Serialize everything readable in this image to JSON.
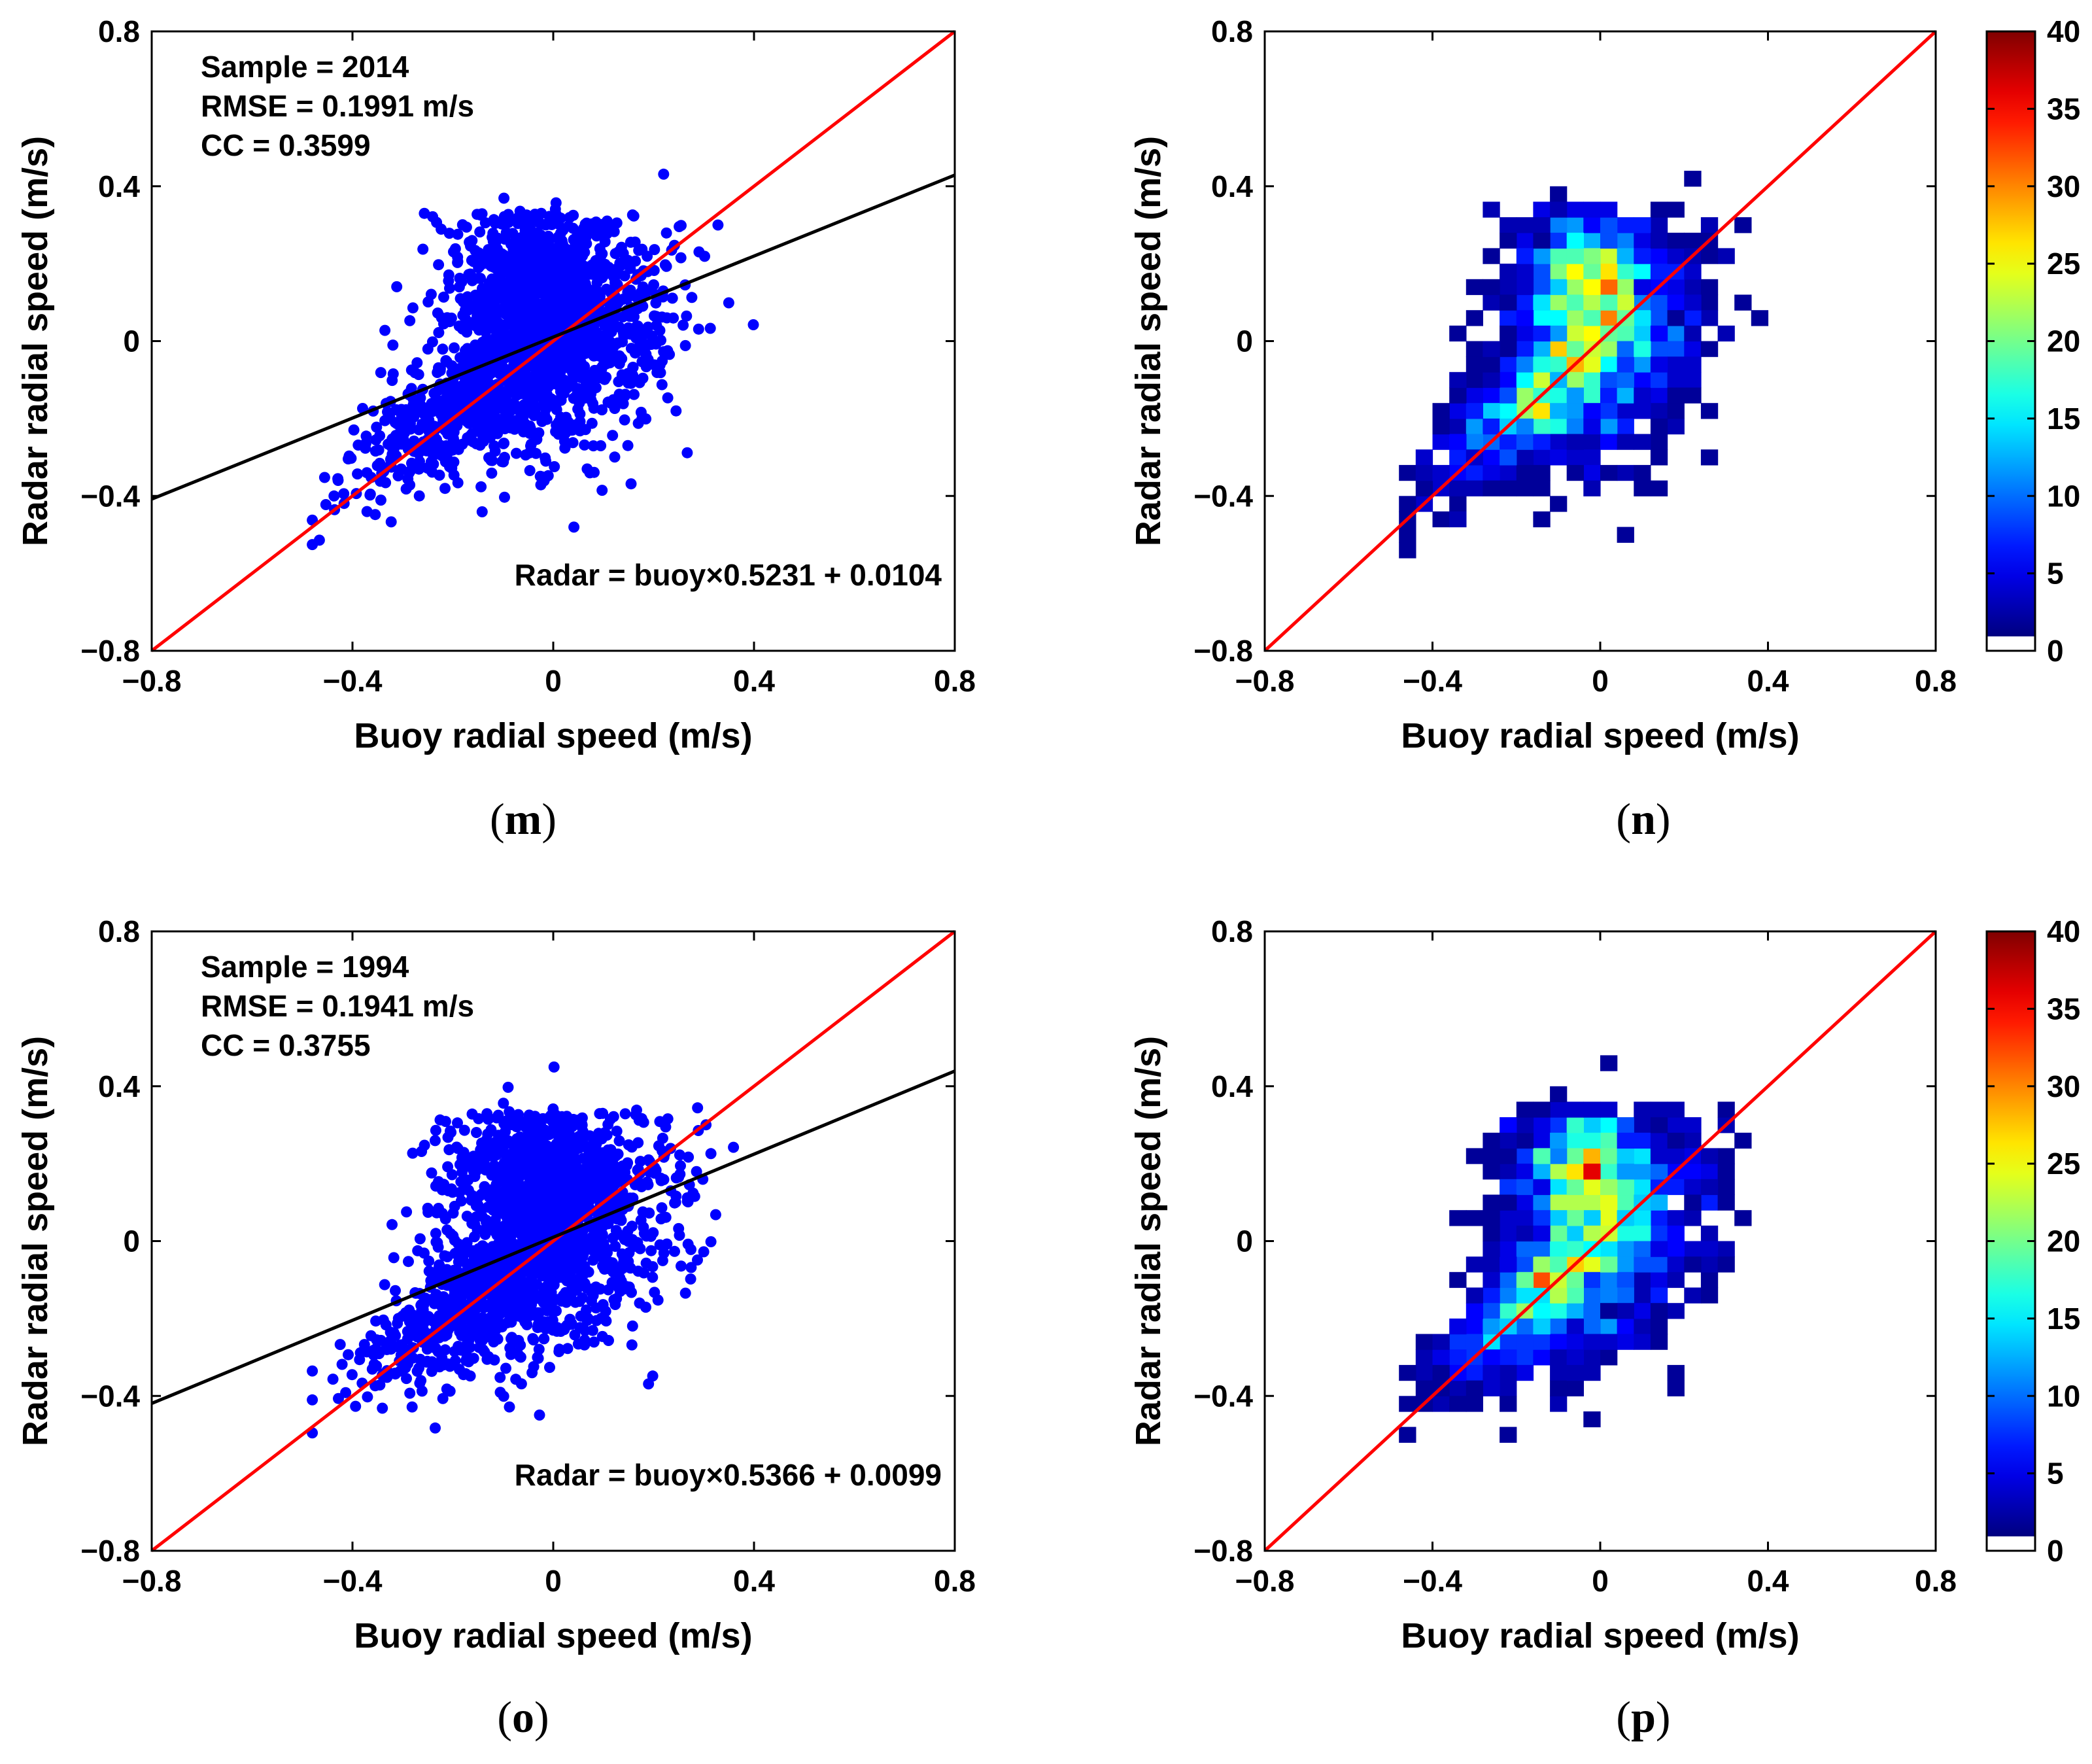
{
  "colors": {
    "scatter_point": "#0000ff",
    "identity_line": "#ff0000",
    "fit_line": "#000000",
    "axis": "#000000",
    "colormap": "jet"
  },
  "chart_data": [
    {
      "id": "m",
      "type": "scatter",
      "caption_open": "(",
      "caption_letter": "m",
      "caption_close": ")",
      "xlabel": "Buoy radial speed (m/s)",
      "ylabel": "Radar radial speed (m/s)",
      "xlim": [
        -0.8,
        0.8
      ],
      "ylim": [
        -0.8,
        0.8
      ],
      "x_ticks": [
        -0.8,
        -0.4,
        0,
        0.4,
        0.8
      ],
      "y_ticks": [
        -0.8,
        -0.4,
        0,
        0.4,
        0.8
      ],
      "x_tick_labels": [
        "−0.8",
        "−0.4",
        "0",
        "0.4",
        "0.8"
      ],
      "y_tick_labels": [
        "−0.8",
        "−0.4",
        "0",
        "0.4",
        "0.8"
      ],
      "stats": [
        "Sample = 2014",
        "RMSE = 0.1991 m/s",
        "CC = 0.3599"
      ],
      "sample": 2014,
      "rmse": 0.1991,
      "cc": 0.3599,
      "fit_equation": "Radar = buoy×0.5231 + 0.0104",
      "fit": {
        "slope": 0.5231,
        "intercept": 0.0104
      },
      "identity_line": true,
      "point_count": 2014,
      "seed": 101,
      "grid": false
    },
    {
      "id": "n",
      "type": "heatmap",
      "caption_open": "(",
      "caption_letter": "n",
      "caption_close": ")",
      "xlabel": "Buoy radial speed (m/s)",
      "ylabel": "Radar radial speed (m/s)",
      "xlim": [
        -0.8,
        0.8
      ],
      "ylim": [
        -0.8,
        0.8
      ],
      "x_ticks": [
        -0.8,
        -0.4,
        0,
        0.4,
        0.8
      ],
      "y_ticks": [
        -0.8,
        -0.4,
        0,
        0.4,
        0.8
      ],
      "x_tick_labels": [
        "−0.8",
        "−0.4",
        "0",
        "0.4",
        "0.8"
      ],
      "y_tick_labels": [
        "−0.8",
        "−0.4",
        "0",
        "0.4",
        "0.8"
      ],
      "bin_width": 0.04,
      "identity_line": true,
      "seed": 101,
      "colorbar": {
        "range": [
          0,
          40
        ],
        "ticks": [
          0,
          5,
          10,
          15,
          20,
          25,
          30,
          35,
          40
        ],
        "tick_labels": [
          "0",
          "5",
          "10",
          "15",
          "20",
          "25",
          "30",
          "35",
          "40"
        ]
      },
      "grid": false
    },
    {
      "id": "o",
      "type": "scatter",
      "caption_open": "(",
      "caption_letter": "o",
      "caption_close": ")",
      "xlabel": "Buoy radial speed (m/s)",
      "ylabel": "Radar radial speed (m/s)",
      "xlim": [
        -0.8,
        0.8
      ],
      "ylim": [
        -0.8,
        0.8
      ],
      "x_ticks": [
        -0.8,
        -0.4,
        0,
        0.4,
        0.8
      ],
      "y_ticks": [
        -0.8,
        -0.4,
        0,
        0.4,
        0.8
      ],
      "x_tick_labels": [
        "−0.8",
        "−0.4",
        "0",
        "0.4",
        "0.8"
      ],
      "y_tick_labels": [
        "−0.8",
        "−0.4",
        "0",
        "0.4",
        "0.8"
      ],
      "stats": [
        "Sample = 1994",
        "RMSE = 0.1941 m/s",
        "CC = 0.3755"
      ],
      "sample": 1994,
      "rmse": 0.1941,
      "cc": 0.3755,
      "fit_equation": "Radar = buoy×0.5366 + 0.0099",
      "fit": {
        "slope": 0.5366,
        "intercept": 0.0099
      },
      "identity_line": true,
      "point_count": 1994,
      "seed": 202,
      "grid": false
    },
    {
      "id": "p",
      "type": "heatmap",
      "caption_open": "(",
      "caption_letter": "p",
      "caption_close": ")",
      "xlabel": "Buoy radial speed (m/s)",
      "ylabel": "Radar radial speed (m/s)",
      "xlim": [
        -0.8,
        0.8
      ],
      "ylim": [
        -0.8,
        0.8
      ],
      "x_ticks": [
        -0.8,
        -0.4,
        0,
        0.4,
        0.8
      ],
      "y_ticks": [
        -0.8,
        -0.4,
        0,
        0.4,
        0.8
      ],
      "x_tick_labels": [
        "−0.8",
        "−0.4",
        "0",
        "0.4",
        "0.8"
      ],
      "y_tick_labels": [
        "−0.8",
        "−0.4",
        "0",
        "0.4",
        "0.8"
      ],
      "bin_width": 0.04,
      "identity_line": true,
      "seed": 202,
      "colorbar": {
        "range": [
          0,
          40
        ],
        "ticks": [
          0,
          5,
          10,
          15,
          20,
          25,
          30,
          35,
          40
        ],
        "tick_labels": [
          "0",
          "5",
          "10",
          "15",
          "20",
          "25",
          "30",
          "35",
          "40"
        ]
      },
      "grid": false
    }
  ]
}
